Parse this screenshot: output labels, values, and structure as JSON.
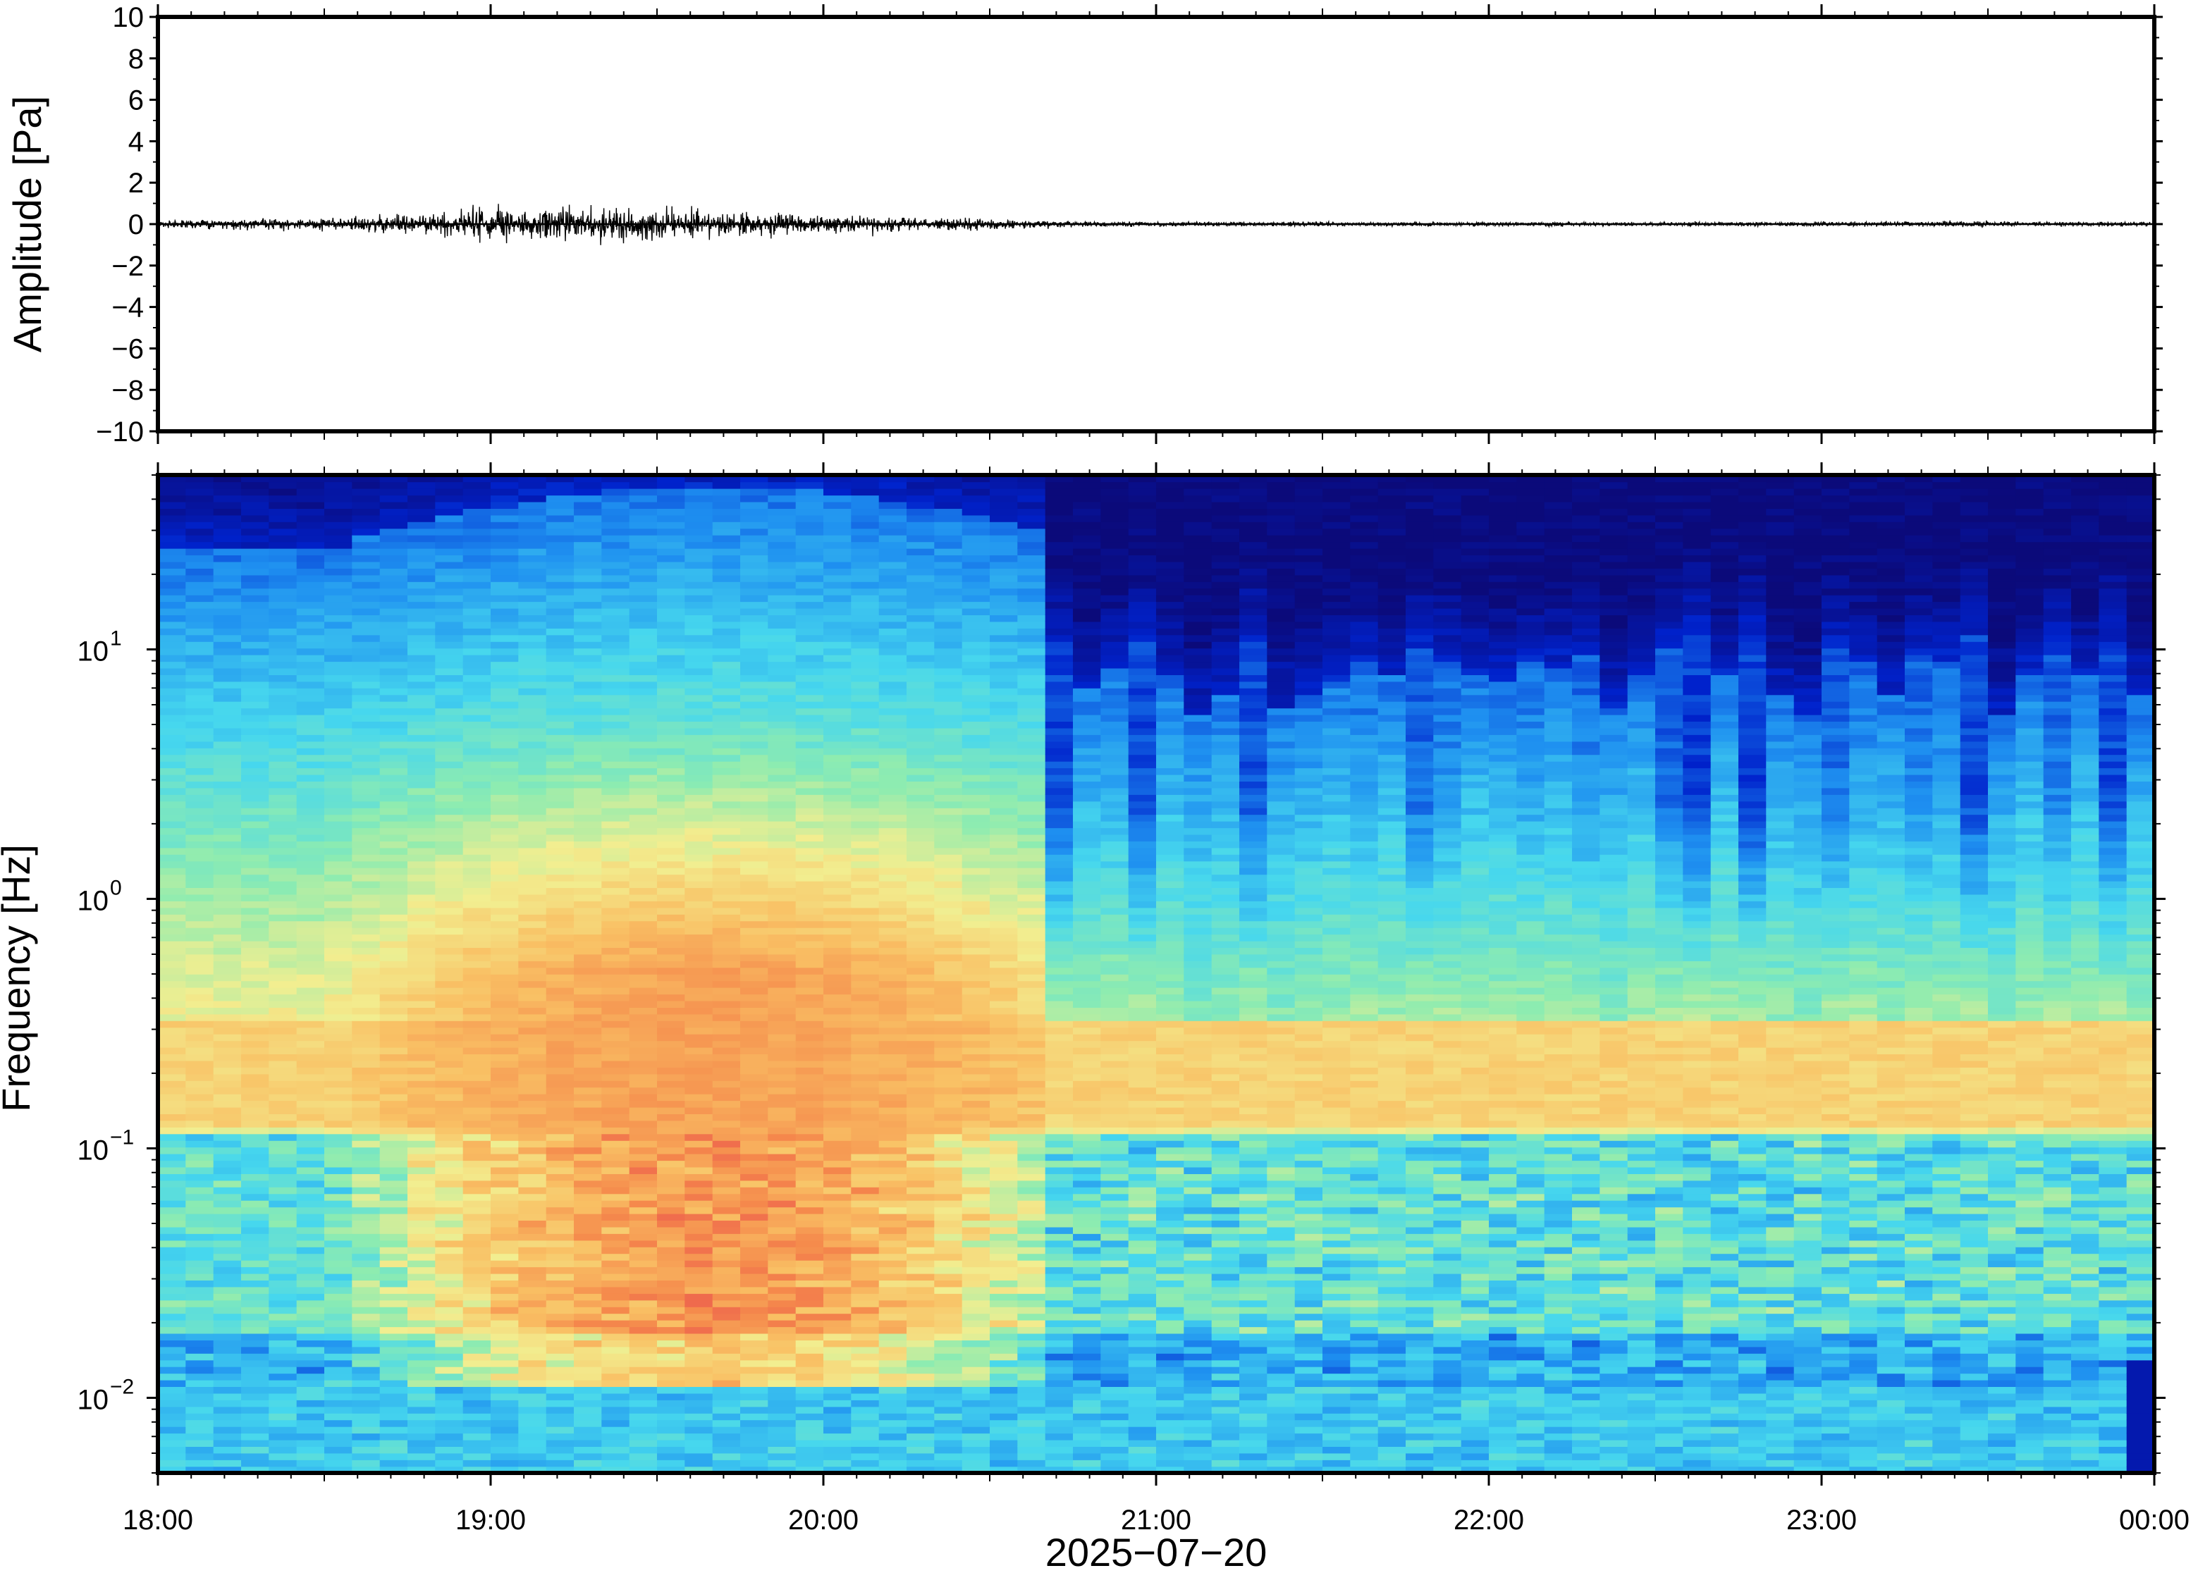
{
  "chart_data": [
    {
      "type": "line",
      "panel": "waveform",
      "ylabel": "Amplitude [Pa]",
      "ylim": [
        -10,
        10
      ],
      "yticks": [
        "10",
        "8",
        "6",
        "4",
        "2",
        "0",
        "−2",
        "−4",
        "−6",
        "−8",
        "−10"
      ],
      "ytick_values": [
        10,
        8,
        6,
        4,
        2,
        0,
        -2,
        -4,
        -6,
        -8,
        -10
      ],
      "xlim": [
        "18:00",
        "00:00"
      ],
      "x": [
        "18:00",
        "18:10",
        "18:20",
        "18:30",
        "18:40",
        "18:50",
        "19:00",
        "19:10",
        "19:20",
        "19:30",
        "19:40",
        "19:50",
        "20:00",
        "20:10",
        "20:20",
        "20:30",
        "20:40",
        "20:50",
        "21:00",
        "21:30",
        "22:00",
        "22:30",
        "23:00",
        "23:30",
        "00:00"
      ],
      "series": [
        {
          "envelope": [
            0.2,
            0.25,
            0.3,
            0.3,
            0.5,
            0.6,
            1.0,
            0.9,
            1.0,
            0.8,
            0.7,
            0.6,
            0.55,
            0.5,
            0.35,
            0.3,
            0.2,
            0.15,
            0.12,
            0.12,
            0.12,
            0.12,
            0.12,
            0.15,
            0.12
          ]
        }
      ],
      "color": "#000000"
    },
    {
      "type": "heatmap",
      "panel": "spectrogram",
      "ylabel": "Frequency [Hz]",
      "yscale": "log",
      "ylim": [
        0.005,
        50
      ],
      "yticks": [
        {
          "base": "10",
          "exp": "1",
          "value": 10
        },
        {
          "base": "10",
          "exp": "0",
          "value": 1
        },
        {
          "base": "10",
          "exp": "−1",
          "value": 0.1
        },
        {
          "base": "10",
          "exp": "−2",
          "value": 0.01
        }
      ],
      "xlabel": "2025−07−20",
      "xticks": [
        "18:00",
        "19:00",
        "20:00",
        "21:00",
        "22:00",
        "23:00",
        "00:00"
      ],
      "colormap": [
        "#0b0a7a",
        "#0022cc",
        "#1e8ff0",
        "#46d7ee",
        "#8eecb0",
        "#f2ee90",
        "#f9c064",
        "#f58a4c",
        "#e9484e"
      ],
      "description_values": {
        "microbarom_band_hz": [
          0.15,
          0.3
        ],
        "high_energy_period": [
          "18:50",
          "20:30"
        ],
        "upper_cutoff_hz_early": 25,
        "upper_cutoff_hz_late": 8
      }
    }
  ]
}
